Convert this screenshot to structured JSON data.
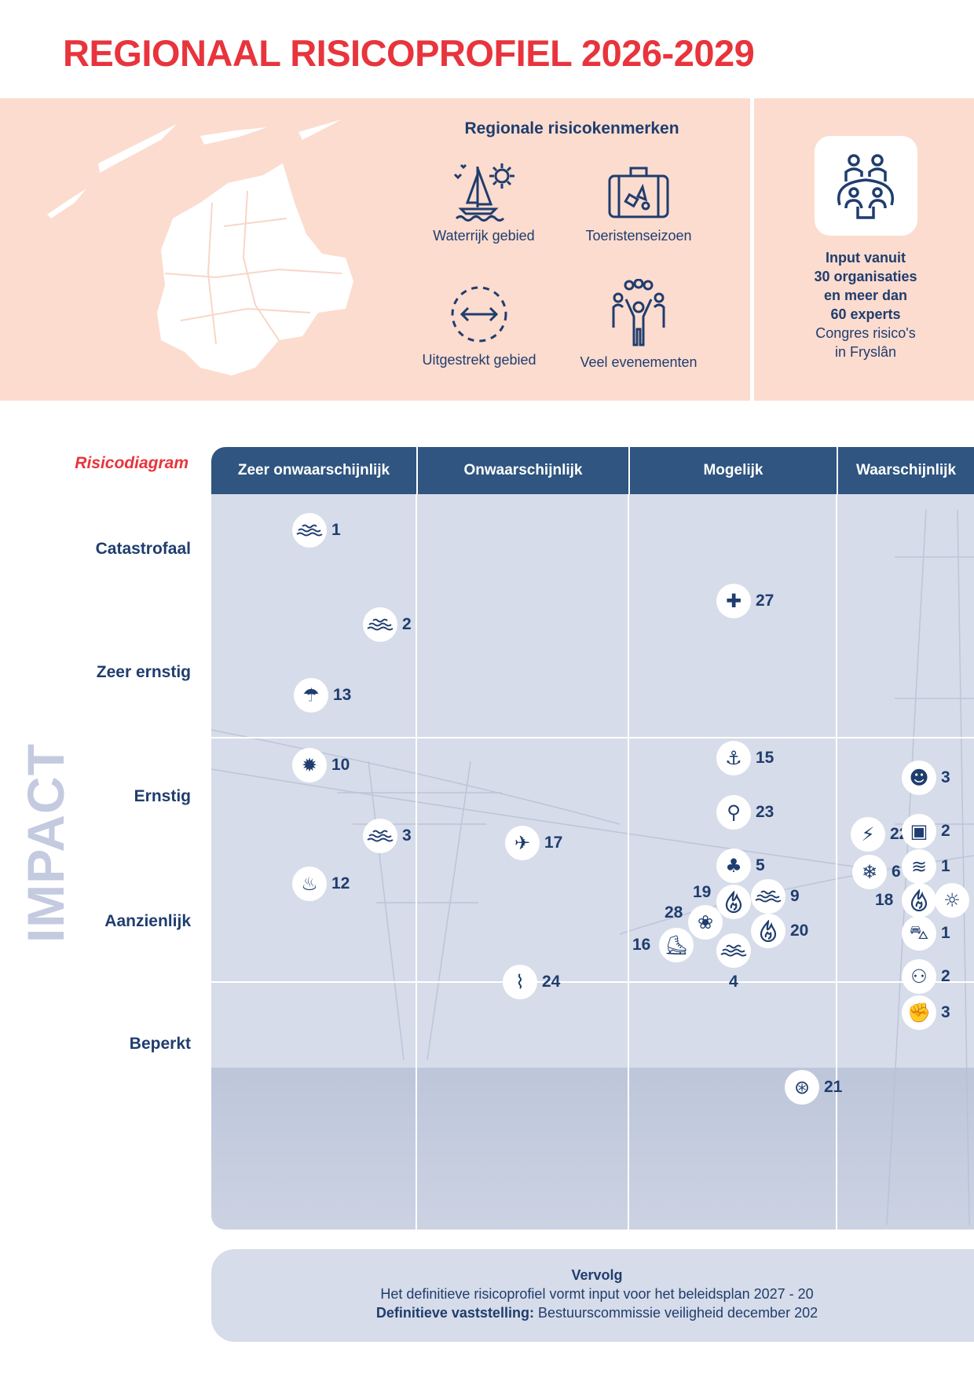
{
  "title": "REGIONAAL RISICOPROFIEL 2026-2029",
  "characteristics": {
    "title": "Regionale risicokenmerken",
    "items": [
      {
        "label": "Waterrijk gebied",
        "icon": "sailboat-sun-icon"
      },
      {
        "label": "Toeristenseizoen",
        "icon": "suitcase-icon"
      },
      {
        "label": "Uitgestrekt gebied",
        "icon": "dashed-circle-arrows-icon"
      },
      {
        "label": "Veel evenementen",
        "icon": "crowd-icon"
      }
    ]
  },
  "input": {
    "icon": "meeting-people-icon",
    "bold_lines": [
      "Input vanuit",
      "30 organisaties",
      "en meer dan",
      "60 experts"
    ],
    "lines": [
      "Congres risico's",
      "in Fryslân"
    ]
  },
  "diagram": {
    "label": "Risicodiagram",
    "axis_label": "IMPACT",
    "columns": [
      "Zeer onwaarschijnlijk",
      "Onwaarschijnlijk",
      "Mogelijk",
      "Waarschijnlijk"
    ],
    "rows": [
      "Catastrofaal",
      "Zeer ernstig",
      "Ernstig",
      "Aanzienlijk",
      "Beperkt"
    ],
    "markers": [
      {
        "label": "1",
        "icon": "waves-icon"
      },
      {
        "label": "2",
        "icon": "waves-icon"
      },
      {
        "label": "13",
        "icon": "flood-person-icon"
      },
      {
        "label": "10",
        "icon": "explosion-icon"
      },
      {
        "label": "3",
        "icon": "waves-icon"
      },
      {
        "label": "12",
        "icon": "bomb-icon"
      },
      {
        "label": "17",
        "icon": "airplane-icon"
      },
      {
        "label": "24",
        "icon": "pipe-spill-icon"
      },
      {
        "label": "27",
        "icon": "hospital-bed-icon"
      },
      {
        "label": "15",
        "icon": "ship-icon"
      },
      {
        "label": "23",
        "icon": "water-tap-icon"
      },
      {
        "label": "5",
        "icon": "forest-fire-icon"
      },
      {
        "label": "19",
        "icon": "flame-icon"
      },
      {
        "label": "9",
        "icon": "waves-icon"
      },
      {
        "label": "28",
        "icon": "animal-paw-icon"
      },
      {
        "label": "20",
        "icon": "flame-icon"
      },
      {
        "label": "16",
        "icon": "ice-skater-icon"
      },
      {
        "label": "4",
        "icon": "waves-icon"
      },
      {
        "label": "21",
        "icon": "gas-pipe-icon"
      },
      {
        "label": "22",
        "icon": "power-pylon-icon"
      },
      {
        "label": "6",
        "icon": "snowflake-icon"
      },
      {
        "label": "3",
        "icon": "terrorist-icon"
      },
      {
        "label": "2",
        "icon": "cyber-screen-icon"
      },
      {
        "label": "1",
        "icon": "swimmer-icon"
      },
      {
        "label": "18",
        "icon": "flame-icon"
      },
      {
        "label": "",
        "icon": "sun-icon"
      },
      {
        "label": "1",
        "icon": "car-icon"
      },
      {
        "label": "2",
        "icon": "crowd-icon"
      },
      {
        "label": "3",
        "icon": "fist-icon"
      }
    ]
  },
  "footer": {
    "title": "Vervolg",
    "line1": "Het definitieve risicoprofiel vormt input voor het beleidsplan 2027 - 20",
    "line2_bold": "Definitieve vaststelling:",
    "line2": " Bestuurscommissie veiligheid december 202"
  },
  "colors": {
    "title_red": "#e8343c",
    "navy": "#2f5580",
    "text_navy": "#1f3d6e",
    "peach": "#fcdccf",
    "grid": "#d6dce9"
  }
}
